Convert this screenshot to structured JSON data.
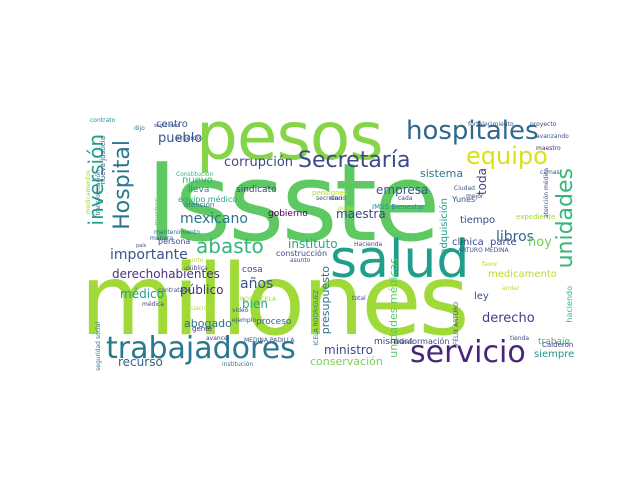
{
  "words": [
    {
      "text": "Issste",
      "color": "#5ec962"
    },
    {
      "text": "millones",
      "color": "#a0da39"
    },
    {
      "text": "pesos",
      "color": "#86d549"
    },
    {
      "text": "salud",
      "color": "#1f9e89"
    },
    {
      "text": "trabajadores",
      "color": "#2a788e"
    },
    {
      "text": "servicio",
      "color": "#482677"
    },
    {
      "text": "hospitales",
      "color": "#31688e"
    },
    {
      "text": "Secretaría",
      "color": "#3e4989"
    },
    {
      "text": "equipo",
      "color": "#d8e219"
    },
    {
      "text": "unidades",
      "color": "#35b779"
    },
    {
      "text": "Hospital",
      "color": "#2a788e"
    },
    {
      "text": "inversión",
      "color": "#1fa187"
    },
    {
      "text": "abasto",
      "color": "#35b779"
    },
    {
      "text": "pueblo",
      "color": "#39568c"
    },
    {
      "text": "corrupción",
      "color": "#3e4989"
    },
    {
      "text": "mexicano",
      "color": "#2c728e"
    },
    {
      "text": "importante",
      "color": "#3b528b"
    },
    {
      "text": "derechohabientes",
      "color": "#46337e"
    },
    {
      "text": "instituto",
      "color": "#22a884"
    },
    {
      "text": "empresa",
      "color": "#3b528b"
    },
    {
      "text": "maestra",
      "color": "#414487"
    },
    {
      "text": "años",
      "color": "#3b528b"
    },
    {
      "text": "bien",
      "color": "#22a884"
    },
    {
      "text": "público",
      "color": "#472d7b"
    },
    {
      "text": "médico",
      "color": "#1f9e89"
    },
    {
      "text": "abogado",
      "color": "#2c728e"
    },
    {
      "text": "libros",
      "color": "#33638d"
    },
    {
      "text": "derecho",
      "color": "#433e85"
    },
    {
      "text": "hoy",
      "color": "#6ece58"
    },
    {
      "text": "sistema",
      "color": "#2a788e"
    },
    {
      "text": "ministro",
      "color": "#3e4989"
    },
    {
      "text": "recurso",
      "color": "#33638d"
    },
    {
      "text": "conservación",
      "color": "#7ad151"
    },
    {
      "text": "siempre",
      "color": "#21918c"
    },
    {
      "text": "centro",
      "color": "#3b528b"
    },
    {
      "text": "nuevo",
      "color": "#35b779"
    },
    {
      "text": "presupuesto",
      "color": "#2c728e"
    },
    {
      "text": "unidades médicas",
      "color": "#5ec962"
    },
    {
      "text": "adquisición",
      "color": "#1f9e89"
    },
    {
      "text": "toda",
      "color": "#433e85"
    },
    {
      "text": "tiempo",
      "color": "#3e4989"
    },
    {
      "text": "parte",
      "color": "#414487"
    },
    {
      "text": "clínica",
      "color": "#3e4989"
    },
    {
      "text": "medicamento",
      "color": "#b5de2b"
    },
    {
      "text": "ley",
      "color": "#3b528b"
    },
    {
      "text": "cosa",
      "color": "#3e4989"
    },
    {
      "text": "proceso",
      "color": "#33638d"
    },
    {
      "text": "sindicato",
      "color": "#433e85"
    },
    {
      "text": "gobierno",
      "color": "#440154"
    },
    {
      "text": "lleva",
      "color": "#21918c"
    },
    {
      "text": "equipo médico",
      "color": "#22a884"
    },
    {
      "text": "mismo",
      "color": "#3e4989"
    },
    {
      "text": "información",
      "color": "#3e4989"
    },
    {
      "text": "trabajo",
      "color": "#35b779"
    },
    {
      "text": "haciendo",
      "color": "#35b779"
    },
    {
      "text": "expediente",
      "color": "#a0da39"
    },
    {
      "text": "Yunes",
      "color": "#3b528b"
    },
    {
      "text": "Calderón",
      "color": "#433e85"
    },
    {
      "text": "Ciudad",
      "color": "#3b528b"
    },
    {
      "text": "IMSS Bienestar",
      "color": "#21918c"
    },
    {
      "text": "construcción",
      "color": "#3e4989"
    },
    {
      "text": "persona",
      "color": "#3b528b"
    },
    {
      "text": "Hacienda",
      "color": "#3e4989"
    },
    {
      "text": "ARTURO MEDINA",
      "color": "#39568c"
    },
    {
      "text": "MEDINA PADILLA",
      "color": "#3b528b"
    },
    {
      "text": "ROSA ICELA",
      "color": "#a0da39"
    },
    {
      "text": "ICELA RODRÍGUEZ",
      "color": "#2c728e"
    },
    {
      "text": "FÉLIX ARTURO",
      "color": "#3b528b"
    },
    {
      "text": "pensiones",
      "color": "#b5de2b"
    },
    {
      "text": "seguridad social",
      "color": "#2c728e"
    },
    {
      "text": "transformación",
      "color": "#31688e"
    },
    {
      "text": "nueva justicia",
      "color": "#39568c"
    },
    {
      "text": "fortalecimiento",
      "color": "#3b528b"
    },
    {
      "text": "proyecto",
      "color": "#3e4989"
    },
    {
      "text": "maestro",
      "color": "#472d7b"
    },
    {
      "text": "contrato",
      "color": "#21918c"
    },
    {
      "text": "dijo",
      "color": "#2a788e"
    },
    {
      "text": "acuerdo",
      "color": "#414487"
    },
    {
      "text": "seguridad",
      "color": "#3b528b"
    },
    {
      "text": "Constitución",
      "color": "#35b779"
    },
    {
      "text": "secretario",
      "color": "#3e4989"
    },
    {
      "text": "atención",
      "color": "#2c728e"
    },
    {
      "text": "mantenimiento",
      "color": "#2c728e"
    },
    {
      "text": "ejemplo",
      "color": "#3b528b"
    },
    {
      "text": "asunto",
      "color": "#3e4989"
    },
    {
      "text": "gente",
      "color": "#46337e"
    },
    {
      "text": "situación",
      "color": "#b5de2b"
    },
    {
      "text": "contratado",
      "color": "#3b528b"
    },
    {
      "text": "médica",
      "color": "#3e4989"
    },
    {
      "text": "video",
      "color": "#3b528b"
    },
    {
      "text": "avance",
      "color": "#3e4989"
    },
    {
      "text": "institución",
      "color": "#2c728e"
    },
    {
      "text": "total",
      "color": "#3b528b"
    },
    {
      "text": "bienes",
      "color": "#3e4989"
    },
    {
      "text": "tienda",
      "color": "#3e4989"
    },
    {
      "text": "andar",
      "color": "#b5de2b"
    },
    {
      "text": "favor",
      "color": "#b5de2b"
    },
    {
      "text": "mejor",
      "color": "#3e4989"
    },
    {
      "text": "camas",
      "color": "#3b528b"
    },
    {
      "text": "atención médica",
      "color": "#3b528b"
    },
    {
      "text": "cada",
      "color": "#3e4989"
    },
    {
      "text": "poder",
      "color": "#b5de2b"
    },
    {
      "text": "sino",
      "color": "#3e4989"
    },
    {
      "text": "medicamentos",
      "color": "#a0da39"
    },
    {
      "text": "muchas",
      "color": "#6ece58"
    },
    {
      "text": "punto",
      "color": "#b5de2b"
    },
    {
      "text": "pública",
      "color": "#3e4989"
    },
    {
      "text": "avanzando",
      "color": "#3b528b"
    },
    {
      "text": "país",
      "color": "#3e4989"
    },
    {
      "text": "manera",
      "color": "#3b528b"
    }
  ]
}
